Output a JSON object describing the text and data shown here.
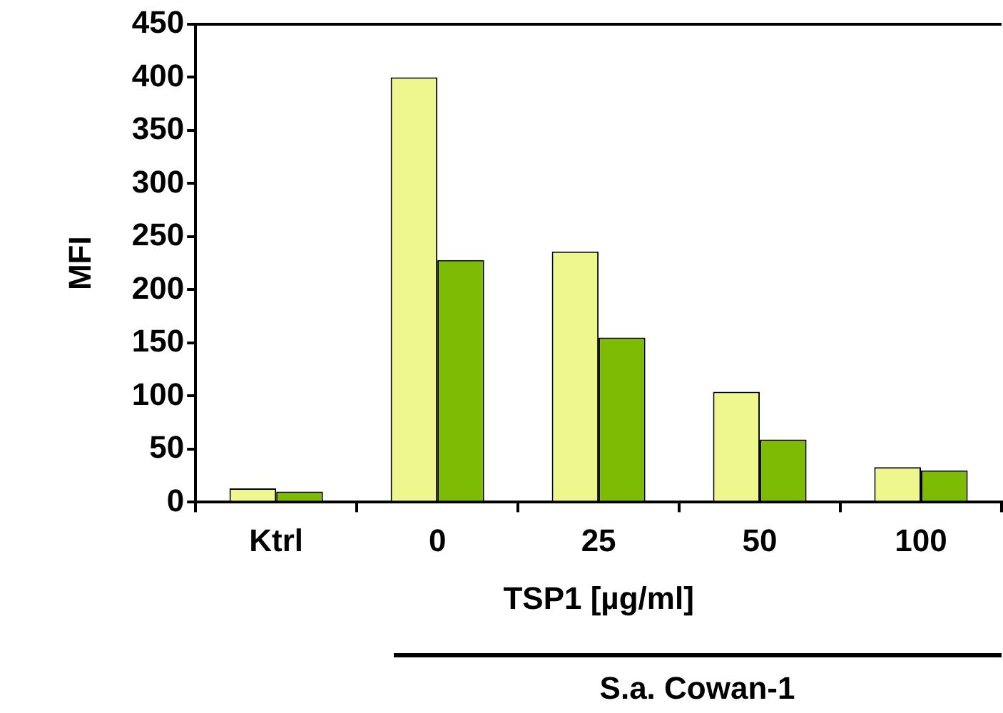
{
  "chart_data": {
    "type": "bar",
    "categories": [
      "Ktrl",
      "0",
      "25",
      "50",
      "100"
    ],
    "series": [
      {
        "color": "#eef78e",
        "values": [
          13,
          400,
          236,
          104,
          33
        ]
      },
      {
        "color": "#7dbb05",
        "values": [
          10,
          228,
          155,
          59,
          30
        ]
      }
    ],
    "xlabel": "TSP1 [µg/ml]",
    "ylabel": "MFI",
    "ylim": [
      0,
      450
    ],
    "yticks": [
      0,
      50,
      100,
      150,
      200,
      250,
      300,
      350,
      400,
      450
    ],
    "grid": false,
    "legend": false,
    "annotations": [
      "S.a. Cowan-1"
    ]
  }
}
